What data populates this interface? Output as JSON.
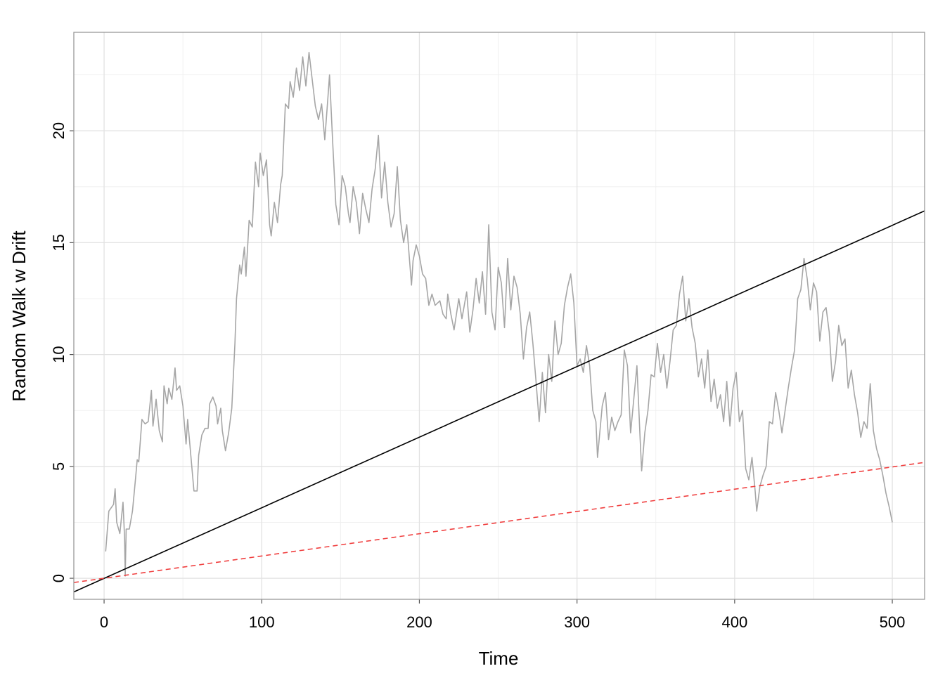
{
  "chart_data": {
    "type": "line",
    "x_label": "Time",
    "y_label": "Random Walk w Drift",
    "xlim": [
      -19.2,
      520.5
    ],
    "ylim": [
      -0.94,
      24.4
    ],
    "xticks": [
      0,
      100,
      200,
      300,
      400,
      500
    ],
    "yticks": [
      0,
      5,
      10,
      15,
      20
    ],
    "grid": true,
    "series": [
      {
        "color": "#a6a6a6",
        "dashed": false,
        "x": [
          1,
          3,
          6,
          7,
          8,
          10,
          12,
          13,
          13.4,
          14,
          16,
          18,
          20,
          21,
          22,
          24,
          26,
          28,
          30,
          31,
          33,
          35,
          37,
          38,
          40,
          41,
          43,
          45,
          46,
          48,
          50,
          52,
          53,
          55,
          57,
          59,
          60,
          62,
          64,
          66,
          67,
          69,
          71,
          72,
          74,
          75,
          77,
          79,
          81,
          83,
          84,
          86,
          87,
          89,
          90,
          92,
          94,
          96,
          98,
          99,
          101,
          103,
          105,
          106,
          108,
          110,
          112,
          113,
          115,
          117,
          118,
          120,
          122,
          124,
          126,
          128,
          130,
          132,
          134,
          136,
          138,
          140,
          142,
          143,
          145,
          147,
          149,
          151,
          153,
          155,
          156,
          158,
          160,
          162,
          164,
          166,
          168,
          170,
          172,
          174,
          176,
          178,
          180,
          182,
          184,
          186,
          188,
          190,
          192,
          195,
          196,
          198,
          200,
          202,
          204,
          206,
          208,
          210,
          213,
          215,
          217,
          218,
          220,
          222,
          225,
          227,
          230,
          232,
          234,
          236,
          238,
          240,
          242,
          244,
          246,
          248,
          250,
          252,
          254,
          256,
          258,
          260,
          262,
          264,
          266,
          268,
          270,
          272,
          274,
          276,
          278,
          280,
          282,
          284,
          286,
          288,
          290,
          292,
          294,
          296,
          298,
          300,
          302,
          304,
          306,
          308,
          310,
          312,
          313,
          316,
          318,
          320,
          322,
          324,
          326,
          328,
          330,
          332,
          334,
          336,
          338,
          340,
          341,
          343,
          345,
          347,
          349,
          351,
          353,
          355,
          357,
          359,
          361,
          363,
          365,
          367,
          369,
          371,
          373,
          375,
          377,
          379,
          381,
          383,
          385,
          387,
          389,
          391,
          393,
          395,
          397,
          399,
          401,
          403,
          405,
          407,
          409,
          411,
          413,
          414,
          416,
          418,
          420,
          422,
          424,
          426,
          428,
          430,
          432,
          434,
          436,
          438,
          440,
          442,
          444,
          446,
          448,
          450,
          452,
          454,
          456,
          458,
          460,
          462,
          464,
          466,
          468,
          470,
          472,
          474,
          476,
          478,
          480,
          482,
          484,
          486,
          488,
          490,
          492,
          494,
          496,
          498,
          500
        ],
        "values": [
          1.2,
          3.0,
          3.3,
          4.0,
          2.5,
          2.0,
          3.4,
          1.8,
          0.1,
          2.2,
          2.2,
          3.0,
          4.5,
          5.3,
          5.2,
          7.1,
          6.9,
          7.0,
          8.4,
          6.8,
          8.0,
          6.6,
          6.1,
          8.6,
          7.8,
          8.5,
          8.0,
          9.4,
          8.4,
          8.6,
          7.7,
          6.0,
          7.1,
          5.5,
          3.9,
          3.9,
          5.5,
          6.4,
          6.7,
          6.7,
          7.8,
          8.1,
          7.7,
          6.9,
          7.6,
          6.6,
          5.7,
          6.5,
          7.6,
          10.5,
          12.5,
          14.0,
          13.6,
          14.8,
          13.5,
          16.0,
          15.7,
          18.6,
          17.5,
          19.0,
          18.0,
          18.7,
          15.8,
          15.3,
          16.8,
          15.9,
          17.6,
          18.0,
          21.2,
          21.0,
          22.2,
          21.5,
          22.8,
          21.8,
          23.3,
          22.0,
          23.5,
          22.3,
          21.1,
          20.5,
          21.2,
          19.6,
          21.5,
          22.5,
          19.5,
          16.7,
          15.8,
          18.0,
          17.5,
          16.3,
          15.9,
          17.5,
          16.8,
          15.4,
          17.2,
          16.5,
          15.9,
          17.4,
          18.3,
          19.8,
          17.0,
          18.6,
          16.8,
          15.7,
          16.3,
          18.4,
          16.0,
          15.0,
          15.8,
          13.1,
          14.2,
          14.9,
          14.4,
          13.6,
          13.4,
          12.2,
          12.7,
          12.2,
          12.4,
          11.8,
          11.6,
          12.7,
          11.8,
          11.1,
          12.5,
          11.6,
          12.8,
          11.0,
          12.0,
          13.4,
          12.3,
          13.7,
          11.8,
          15.8,
          11.9,
          11.1,
          13.9,
          13.2,
          11.2,
          14.3,
          12.0,
          13.5,
          13.0,
          11.8,
          9.8,
          11.2,
          11.9,
          10.5,
          8.8,
          7.0,
          9.2,
          7.4,
          10.0,
          8.8,
          11.5,
          10.0,
          10.5,
          12.2,
          13.0,
          13.6,
          12.3,
          9.5,
          9.8,
          9.2,
          10.4,
          9.5,
          7.5,
          7.0,
          5.4,
          7.7,
          8.3,
          6.2,
          7.2,
          6.6,
          7.0,
          7.3,
          10.2,
          9.5,
          6.5,
          8.0,
          9.5,
          6.3,
          4.8,
          6.5,
          7.5,
          9.1,
          9.0,
          10.5,
          9.2,
          10.0,
          8.5,
          9.7,
          11.1,
          11.3,
          12.7,
          13.5,
          11.5,
          12.5,
          11.2,
          10.5,
          9.0,
          9.8,
          8.5,
          10.2,
          7.9,
          8.9,
          7.6,
          8.2,
          7.0,
          8.8,
          6.8,
          8.5,
          9.2,
          7.0,
          7.5,
          4.9,
          4.4,
          5.4,
          3.9,
          3.0,
          4.1,
          4.6,
          5.0,
          7.0,
          6.9,
          8.3,
          7.5,
          6.5,
          7.5,
          8.5,
          9.4,
          10.2,
          12.5,
          12.9,
          14.3,
          13.4,
          12.0,
          13.2,
          12.8,
          10.6,
          11.9,
          12.1,
          11.0,
          8.8,
          9.7,
          11.3,
          10.4,
          10.7,
          8.5,
          9.3,
          8.2,
          7.4,
          6.3,
          7.0,
          6.7,
          8.7,
          6.6,
          5.8,
          5.3,
          4.6,
          3.8,
          3.2,
          2.5
        ]
      },
      {
        "color": "#000000",
        "dashed": false,
        "x": [
          -19.2,
          520.5
        ],
        "values": [
          -0.61,
          16.42
        ]
      },
      {
        "color": "#f04040",
        "dashed": true,
        "x": [
          -19.2,
          520.5
        ],
        "values": [
          -0.19,
          5.18
        ]
      }
    ]
  }
}
